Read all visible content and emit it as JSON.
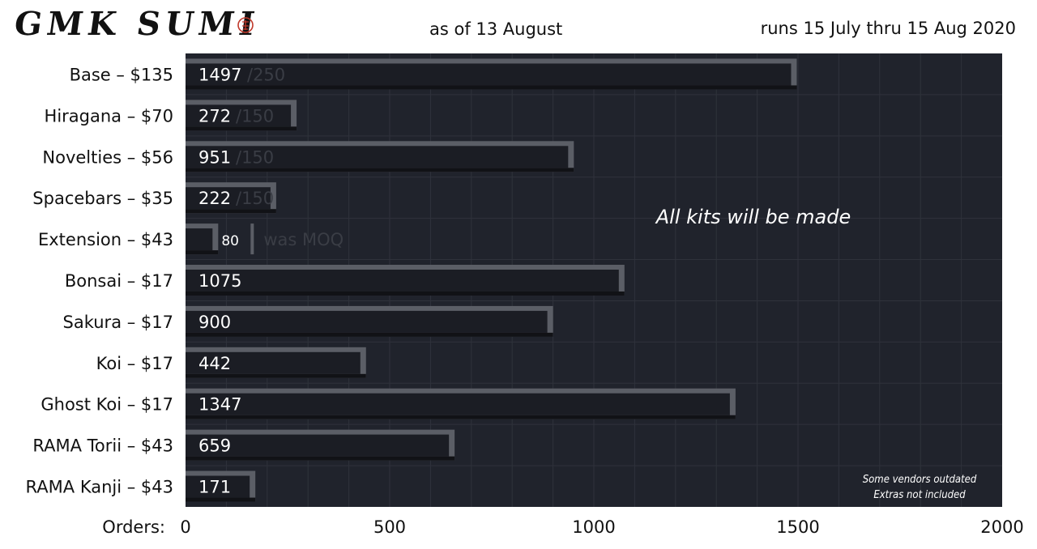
{
  "header": {
    "logo_text": "GMK SUMI",
    "subtitle": "as of 13 August",
    "date_range": "runs 15 July thru 15 Aug 2020"
  },
  "colors": {
    "plot_bg": "#20232c",
    "bar_fill": "#1b1d24",
    "bar_bevel": "#5b5e66",
    "grid": "#2f323b",
    "seal": "#c0392b"
  },
  "chart_data": {
    "type": "bar",
    "orientation": "horizontal",
    "categories": [
      "Base – $135",
      "Hiragana – $70",
      "Novelties – $56",
      "Spacebars – $35",
      "Extension – $43",
      "Bonsai – $17",
      "Sakura – $17",
      "Koi – $17",
      "Ghost Koi – $17",
      "RAMA Torii – $43",
      "RAMA Kanji – $43"
    ],
    "values": [
      1497,
      272,
      951,
      222,
      80,
      1075,
      900,
      442,
      1347,
      659,
      171
    ],
    "moq": [
      {
        "category": "Base – $135",
        "label": "/250"
      },
      {
        "category": "Hiragana – $70",
        "label": "/150"
      },
      {
        "category": "Novelties – $56",
        "label": "/150"
      },
      {
        "category": "Spacebars – $35",
        "label": "/150"
      },
      {
        "category": "Extension – $43",
        "label": "was MOQ"
      }
    ],
    "xlabel": "Orders:",
    "xlim": [
      0,
      2000
    ],
    "xticks": [
      0,
      500,
      1000,
      1500,
      2000
    ],
    "grid": true,
    "annotations": {
      "main": "All kits will be made",
      "note_line1": "Some vendors outdated",
      "note_line2": "Extras not included"
    }
  }
}
